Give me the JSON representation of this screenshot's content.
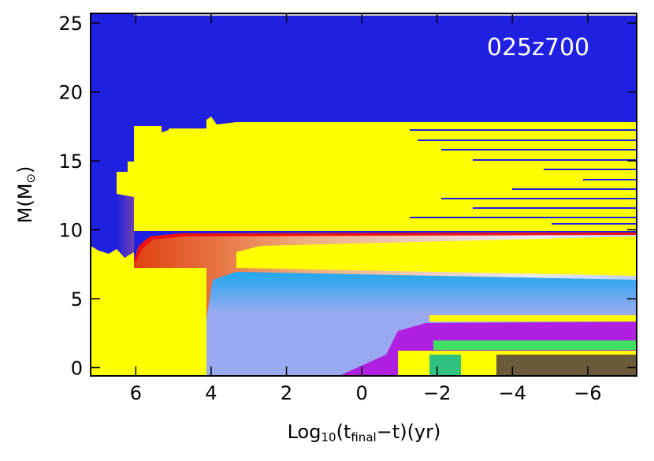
{
  "chart_data": {
    "type": "kippenhahn",
    "title": "025z700",
    "xlabel": [
      {
        "text": "Log"
      },
      {
        "text": "10",
        "sub": true
      },
      {
        "text": "(t"
      },
      {
        "text": "final",
        "sub": true
      },
      {
        "text": "−t)(yr)"
      }
    ],
    "ylabel": [
      {
        "text": "M(M"
      },
      {
        "text": "⊙",
        "sub": true
      },
      {
        "text": ")"
      }
    ],
    "xlim": [
      7.2,
      -7.3
    ],
    "xticks": [
      6,
      4,
      2,
      0,
      {
        "value": -2,
        "label": "−2"
      },
      {
        "value": -4,
        "label": "−4"
      },
      {
        "value": -6,
        "label": "−6"
      }
    ],
    "ylim": [
      -0.6,
      25.7
    ],
    "yticks": [
      0,
      5,
      10,
      15,
      20,
      25
    ]
  }
}
